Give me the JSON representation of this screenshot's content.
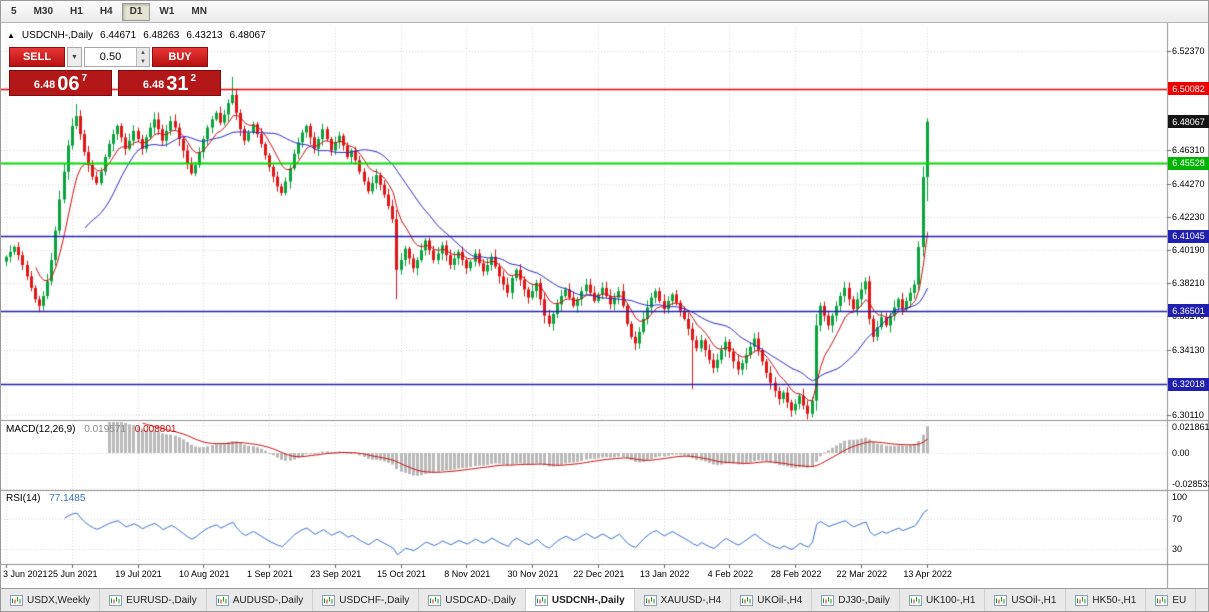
{
  "toolbar": {
    "timeframes": [
      {
        "label": "5"
      },
      {
        "label": "M30"
      },
      {
        "label": "H1"
      },
      {
        "label": "H4"
      },
      {
        "label": "D1",
        "active": true
      },
      {
        "label": "W1"
      },
      {
        "label": "MN"
      }
    ]
  },
  "icons": {
    "collapse": "▲",
    "dropdown": "▼",
    "spin_up": "▲",
    "spin_down": "▼"
  },
  "info_bar": {
    "symbol": "USDCNH-,Daily",
    "open": "6.44671",
    "high": "6.48263",
    "low": "6.43213",
    "close": "6.48067"
  },
  "trade_panel": {
    "sell_label": "SELL",
    "buy_label": "BUY",
    "volume": "0.50",
    "sell_price": {
      "main": "6.48",
      "big": "06",
      "sup": "7"
    },
    "buy_price": {
      "main": "6.48",
      "big": "31",
      "sup": "2"
    }
  },
  "price_axis": {
    "labels": [
      "6.52370",
      "6.46310",
      "6.44270",
      "6.42230",
      "6.40190",
      "6.38210",
      "6.36170",
      "6.34130",
      "6.30110"
    ],
    "markers": [
      {
        "text": "6.50082",
        "price": 6.50082,
        "bg": "#ee0000",
        "line": true,
        "line_color": "#ee0000",
        "line_width": 1.5
      },
      {
        "text": "6.48067",
        "price": 6.48067,
        "bg": "#141414",
        "line": false
      },
      {
        "text": "6.45528",
        "price": 6.45528,
        "bg": "#00b400",
        "line": true,
        "line_color": "#00dc00",
        "line_width": 2
      },
      {
        "text": "6.41045",
        "price": 6.41045,
        "bg": "#2020b0",
        "line": true,
        "line_color": "#2020b0",
        "line_width": 1.5
      },
      {
        "text": "6.36501",
        "price": 6.36501,
        "bg": "#2020b0",
        "line": true,
        "line_color": "#2020b0",
        "line_width": 1.5
      },
      {
        "text": "6.32018",
        "price": 6.32018,
        "bg": "#2020b0",
        "line": true,
        "line_color": "#2020b0",
        "line_width": 1.5
      }
    ]
  },
  "macd_panel": {
    "label": "MACD(12,26,9)",
    "value1": "0.019571",
    "value2": "0.008801",
    "axis": [
      "0.021861",
      "0.00",
      "-0.028533"
    ]
  },
  "rsi_panel": {
    "label": "RSI(14)",
    "value": "77.1485",
    "axis": [
      "100",
      "70",
      "30"
    ]
  },
  "date_axis": [
    "3 Jun 2021",
    "25 Jun 2021",
    "19 Jul 2021",
    "10 Aug 2021",
    "1 Sep 2021",
    "23 Sep 2021",
    "15 Oct 2021",
    "8 Nov 2021",
    "30 Nov 2021",
    "22 Dec 2021",
    "13 Jan 2022",
    "4 Feb 2022",
    "28 Feb 2022",
    "22 Mar 2022",
    "13 Apr 2022"
  ],
  "tabs": [
    {
      "label": "USDX,Weekly"
    },
    {
      "label": "EURUSD-,Daily"
    },
    {
      "label": "AUDUSD-,Daily"
    },
    {
      "label": "USDCHF-,Daily"
    },
    {
      "label": "USDCAD-,Daily"
    },
    {
      "label": "USDCNH-,Daily",
      "active": true
    },
    {
      "label": "XAUUSD-,H4"
    },
    {
      "label": "UKOil-,H4"
    },
    {
      "label": "DJ30-,Daily"
    },
    {
      "label": "UK100-,H1"
    },
    {
      "label": "USOil-,H1"
    },
    {
      "label": "HK50-,H1"
    },
    {
      "label": "EU"
    }
  ],
  "chart_data": {
    "type": "candlestick",
    "symbol": "USDCNH",
    "timeframe": "Daily",
    "bars_per_label": 16,
    "bull_color": "#0aa33c",
    "bear_color": "#e01616",
    "y_axis": {
      "top": 6.5385,
      "bottom": 6.2982,
      "gridlines": [
        6.5237,
        6.4631,
        6.4427,
        6.4223,
        6.4019,
        6.3821,
        6.3617,
        6.3413,
        6.3011
      ]
    },
    "closes": [
      6.398,
      6.401,
      6.404,
      6.399,
      6.393,
      6.386,
      6.379,
      6.372,
      6.368,
      6.374,
      6.383,
      6.396,
      6.414,
      6.433,
      6.45,
      6.466,
      6.478,
      6.484,
      6.473,
      6.462,
      6.454,
      6.447,
      6.443,
      6.45,
      6.459,
      6.467,
      6.473,
      6.478,
      6.471,
      6.464,
      6.469,
      6.475,
      6.47,
      6.464,
      6.471,
      6.477,
      6.482,
      6.476,
      6.469,
      6.475,
      6.481,
      6.477,
      6.47,
      6.463,
      6.455,
      6.449,
      6.454,
      6.462,
      6.47,
      6.477,
      6.482,
      6.486,
      6.48,
      6.485,
      6.492,
      6.497,
      6.486,
      6.476,
      6.469,
      6.474,
      6.479,
      6.473,
      6.467,
      6.46,
      6.453,
      6.447,
      6.441,
      6.437,
      6.444,
      6.452,
      6.461,
      6.468,
      6.474,
      6.478,
      6.471,
      6.464,
      6.47,
      6.476,
      6.47,
      6.463,
      6.468,
      6.472,
      6.466,
      6.459,
      6.463,
      6.457,
      6.45,
      6.444,
      6.438,
      6.443,
      6.448,
      6.442,
      6.436,
      6.429,
      6.421,
      6.39,
      6.396,
      6.403,
      6.397,
      6.391,
      6.396,
      6.402,
      6.408,
      6.402,
      6.396,
      6.4,
      6.405,
      6.399,
      6.393,
      6.397,
      6.401,
      6.396,
      6.391,
      6.395,
      6.4,
      6.394,
      6.389,
      6.393,
      6.398,
      6.392,
      6.386,
      6.381,
      6.376,
      6.385,
      6.39,
      6.384,
      6.378,
      6.373,
      6.377,
      6.382,
      6.372,
      6.362,
      6.357,
      6.363,
      6.369,
      6.374,
      6.378,
      6.373,
      6.368,
      6.372,
      6.377,
      6.381,
      6.376,
      6.371,
      6.375,
      6.379,
      6.374,
      6.369,
      6.373,
      6.377,
      6.368,
      6.357,
      6.349,
      6.345,
      6.352,
      6.36,
      6.367,
      6.373,
      6.377,
      6.371,
      6.366,
      6.371,
      6.375,
      6.37,
      6.365,
      6.36,
      6.354,
      6.347,
      6.342,
      6.347,
      6.341,
      6.335,
      6.33,
      6.335,
      6.341,
      6.346,
      6.34,
      6.334,
      6.329,
      6.333,
      6.338,
      6.343,
      6.348,
      6.341,
      6.334,
      6.327,
      6.321,
      6.316,
      6.311,
      6.315,
      6.309,
      6.304,
      6.308,
      6.313,
      6.307,
      6.302,
      6.31,
      6.356,
      6.368,
      6.362,
      6.356,
      6.362,
      6.368,
      6.374,
      6.379,
      6.372,
      6.366,
      6.372,
      6.378,
      6.383,
      6.36,
      6.349,
      6.355,
      6.361,
      6.356,
      6.362,
      6.367,
      6.372,
      6.366,
      6.371,
      6.376,
      6.381,
      6.404,
      6.44671,
      6.48067
    ],
    "last_candle": {
      "open": 6.44671,
      "high": 6.48263,
      "low": 6.43213,
      "close": 6.48067
    },
    "wick_overrides": {
      "17": {
        "high": 6.4915
      },
      "55": {
        "high": 6.508
      },
      "95": {
        "low": 6.372
      },
      "167": {
        "low": 6.317
      }
    },
    "levels": [
      {
        "price": 6.50082,
        "color": "#ee0000"
      },
      {
        "price": 6.45528,
        "color": "#00dc00"
      },
      {
        "price": 6.41045,
        "color": "#2020b0"
      },
      {
        "price": 6.36501,
        "color": "#2020b0"
      },
      {
        "price": 6.32018,
        "color": "#2020b0"
      }
    ],
    "indicators": {
      "ma_fast": {
        "type": "EMA",
        "period": 8,
        "color": "#cc1111"
      },
      "ma_slow": {
        "type": "SMA",
        "period": 20,
        "color": "#2929c8"
      },
      "macd": {
        "fast": 12,
        "slow": 26,
        "signal": 9,
        "current": [
          0.019571,
          0.008801
        ],
        "axis_range": [
          -0.028533,
          0.021861
        ],
        "histogram_color": "#b9b9b9",
        "signal_color": "#cc1111"
      },
      "rsi": {
        "period": 14,
        "current": 77.1485,
        "levels": [
          30,
          70
        ],
        "color": "#3b6fd4"
      }
    }
  }
}
